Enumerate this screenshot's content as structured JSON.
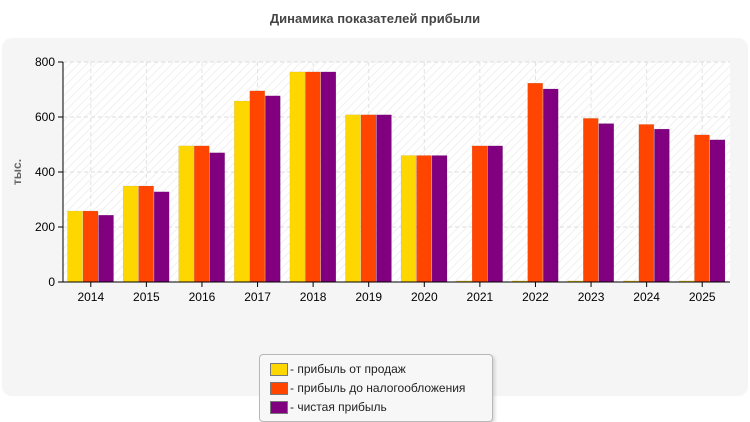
{
  "chart_data": {
    "type": "bar",
    "title": "Динамика показателей прибыли",
    "xlabel": "",
    "ylabel": "тыс.",
    "ylim": [
      0,
      800
    ],
    "yticks": [
      0,
      200,
      400,
      600,
      800
    ],
    "grid": true,
    "legend_position": "bottom-center",
    "categories": [
      "2014",
      "2015",
      "2016",
      "2017",
      "2018",
      "2019",
      "2020",
      "2021",
      "2022",
      "2023",
      "2024",
      "2025"
    ],
    "series": [
      {
        "name": "- прибыль от продаж",
        "color": "#ffd700",
        "values": [
          258,
          349,
          495,
          658,
          764,
          608,
          460,
          4,
          4,
          4,
          4,
          4
        ]
      },
      {
        "name": "- прибыль до налогообложения",
        "color": "#ff4500",
        "values": [
          258,
          349,
          495,
          695,
          764,
          608,
          460,
          495,
          723,
          595,
          573,
          535
        ]
      },
      {
        "name": "- чистая прибыль",
        "color": "#800080",
        "values": [
          243,
          328,
          470,
          677,
          764,
          608,
          460,
          495,
          702,
          576,
          556,
          517
        ]
      }
    ]
  }
}
